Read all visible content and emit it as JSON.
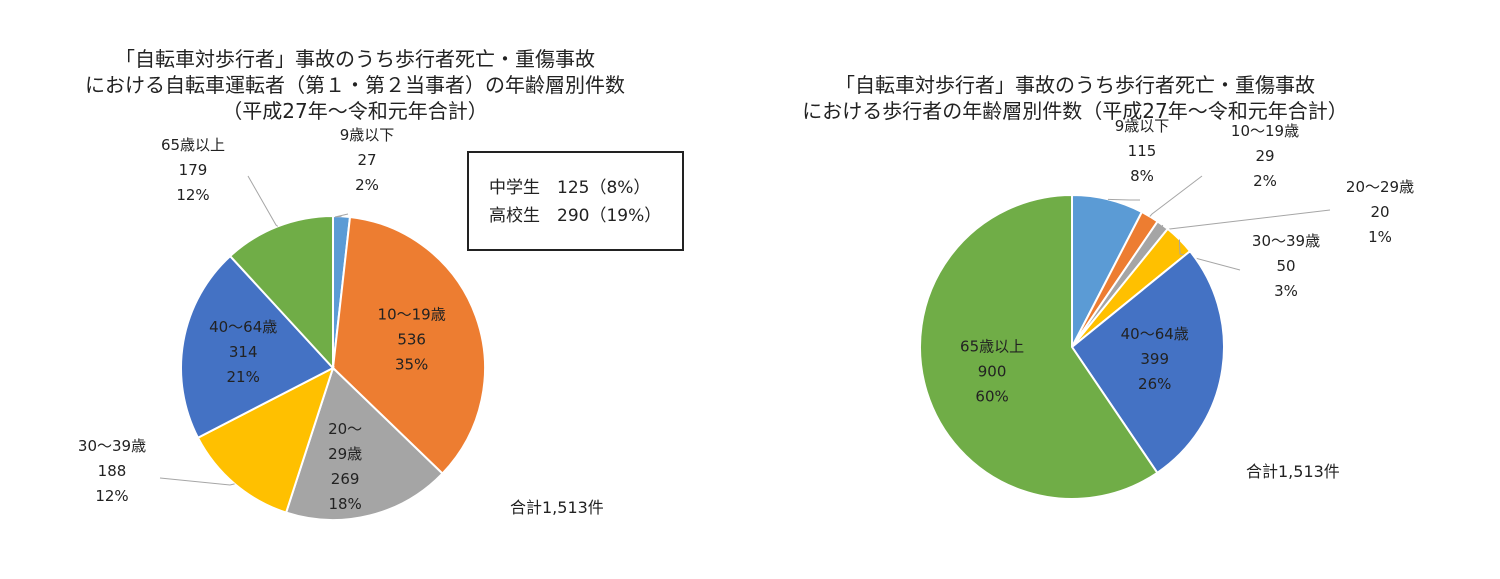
{
  "chart_data": [
    {
      "type": "pie",
      "title": [
        "「自転車対歩行者」事故のうち歩行者死亡・重傷事故",
        "における自転車運転者（第１・第２当事者）の年齢層別件数",
        "（平成27年～令和元年合計）"
      ],
      "slices": [
        {
          "label": "9歳以下",
          "label_lines": [
            "9歳以下"
          ],
          "value": 27,
          "value_text": "27",
          "pct": "2%",
          "color": "#5B9BD5"
        },
        {
          "label": "10～19歳",
          "label_lines": [
            "10～19歳"
          ],
          "value": 536,
          "value_text": "536",
          "pct": "35%",
          "color": "#ED7D31"
        },
        {
          "label": "20～29歳",
          "label_lines": [
            "20～",
            "29歳"
          ],
          "value": 269,
          "value_text": "269",
          "pct": "18%",
          "color": "#A5A5A5"
        },
        {
          "label": "30～39歳",
          "label_lines": [
            "30～39歳"
          ],
          "value": 188,
          "value_text": "188",
          "pct": "12%",
          "color": "#FFC000"
        },
        {
          "label": "40～64歳",
          "label_lines": [
            "40～64歳"
          ],
          "value": 314,
          "value_text": "314",
          "pct": "21%",
          "color": "#4472C4"
        },
        {
          "label": "65歳以上",
          "label_lines": [
            "65歳以上"
          ],
          "value": 179,
          "value_text": "179",
          "pct": "12%",
          "color": "#70AD47"
        }
      ],
      "note_lines": [
        "中学生　125（8%）",
        "高校生　290（19%）"
      ],
      "total": "合計1,513件"
    },
    {
      "type": "pie",
      "title": [
        "「自転車対歩行者」事故のうち歩行者死亡・重傷事故",
        "における歩行者の年齢層別件数（平成27年～令和元年合計）"
      ],
      "slices": [
        {
          "label": "9歳以下",
          "label_lines": [
            "9歳以下"
          ],
          "value": 115,
          "value_text": "115",
          "pct": "8%",
          "color": "#5B9BD5"
        },
        {
          "label": "10～19歳",
          "label_lines": [
            "10～19歳"
          ],
          "value": 29,
          "value_text": "29",
          "pct": "2%",
          "color": "#ED7D31"
        },
        {
          "label": "20～29歳",
          "label_lines": [
            "20～29歳"
          ],
          "value": 20,
          "value_text": "20",
          "pct": "1%",
          "color": "#A5A5A5"
        },
        {
          "label": "30～39歳",
          "label_lines": [
            "30～39歳"
          ],
          "value": 50,
          "value_text": "50",
          "pct": "3%",
          "color": "#FFC000"
        },
        {
          "label": "40～64歳",
          "label_lines": [
            "40～64歳"
          ],
          "value": 399,
          "value_text": "399",
          "pct": "26%",
          "color": "#4472C4"
        },
        {
          "label": "65歳以上",
          "label_lines": [
            "65歳以上"
          ],
          "value": 900,
          "value_text": "900",
          "pct": "60%",
          "color": "#70AD47"
        }
      ],
      "total": "合計1,513件"
    }
  ]
}
